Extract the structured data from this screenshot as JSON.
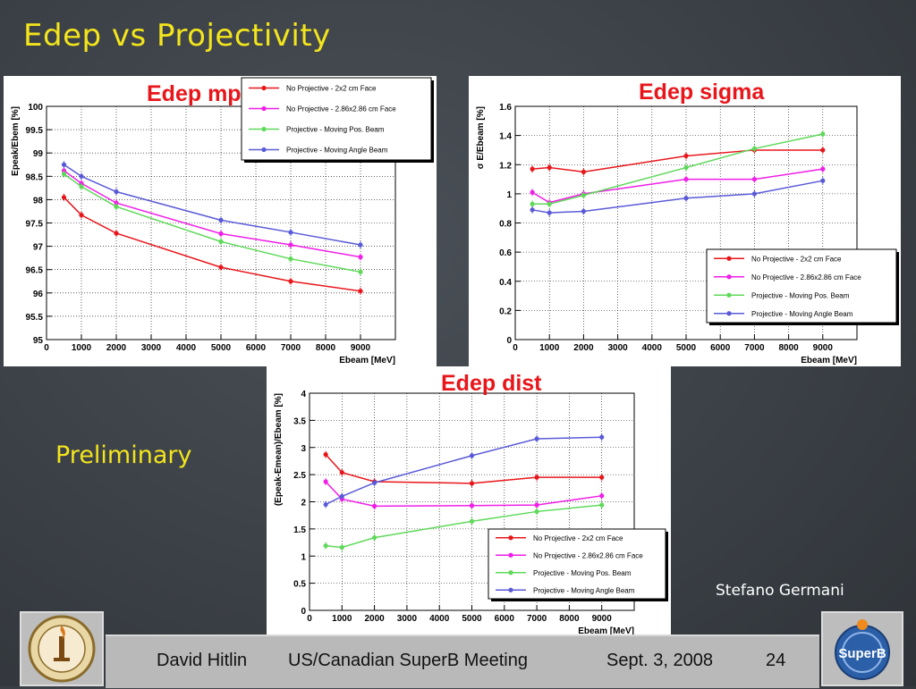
{
  "slide": {
    "title": "Edep vs Projectivity",
    "preliminary": "Preliminary",
    "author": "Stefano Germani"
  },
  "footer": {
    "presenter": "David Hitlin",
    "meeting": "US/Canadian SuperB Meeting",
    "date": "Sept. 3, 2008",
    "page": "24",
    "left_logo": "caltech-seal",
    "right_logo": "superb-logo",
    "right_logo_text": "SuperB"
  },
  "colors": {
    "title_yellow": "#f3e51c",
    "red": "#e8161b",
    "magenta": "#f01ee6",
    "green": "#5fd95a",
    "blue": "#5a5ad8"
  },
  "chart_data": [
    {
      "id": "mpv",
      "type": "line",
      "title": "Edep mpv",
      "xlabel": "Ebeam [MeV]",
      "ylabel": "Epeak/Ebem [%]",
      "xlim": [
        0,
        10000
      ],
      "ylim": [
        95,
        100
      ],
      "xticks": [
        0,
        1000,
        2000,
        3000,
        4000,
        5000,
        6000,
        7000,
        8000,
        9000
      ],
      "yticks": [
        95,
        95.5,
        96,
        96.5,
        97,
        97.5,
        98,
        98.5,
        99,
        99.5,
        100
      ],
      "grid": true,
      "legend_position": "top-right",
      "x": [
        500,
        1000,
        2000,
        5000,
        7000,
        9000
      ],
      "series": [
        {
          "name": "No Projective - 2x2 cm Face",
          "color": "#e8161b",
          "values": [
            98.05,
            97.67,
            97.28,
            96.55,
            96.25,
            96.04
          ]
        },
        {
          "name": "No Projective - 2.86x2.86 cm Face",
          "color": "#f01ee6",
          "values": [
            98.62,
            98.35,
            97.93,
            97.27,
            97.03,
            96.77
          ]
        },
        {
          "name": "Projective - Moving Pos. Beam",
          "color": "#5fd95a",
          "values": [
            98.55,
            98.28,
            97.85,
            97.1,
            96.73,
            96.45
          ]
        },
        {
          "name": "Projective - Moving Angle Beam",
          "color": "#5a5ad8",
          "values": [
            98.75,
            98.5,
            98.17,
            97.56,
            97.3,
            97.03
          ]
        }
      ]
    },
    {
      "id": "sigma",
      "type": "line",
      "title": "Edep sigma",
      "xlabel": "Ebeam [MeV]",
      "ylabel": "σ E/Ebeam [%]",
      "xlim": [
        0,
        10000
      ],
      "ylim": [
        0,
        1.6
      ],
      "xticks": [
        0,
        1000,
        2000,
        3000,
        4000,
        5000,
        6000,
        7000,
        8000,
        9000
      ],
      "yticks": [
        0,
        0.2,
        0.4,
        0.6,
        0.8,
        1,
        1.2,
        1.4,
        1.6
      ],
      "grid": true,
      "legend_position": "bottom-right",
      "x": [
        500,
        1000,
        2000,
        5000,
        7000,
        9000
      ],
      "series": [
        {
          "name": "No Projective - 2x2 cm Face",
          "color": "#e8161b",
          "values": [
            1.17,
            1.18,
            1.15,
            1.26,
            1.3,
            1.3
          ]
        },
        {
          "name": "No Projective - 2.86x2.86 cm Face",
          "color": "#f01ee6",
          "values": [
            1.01,
            0.94,
            1.0,
            1.1,
            1.1,
            1.17
          ]
        },
        {
          "name": "Projective - Moving Pos. Beam",
          "color": "#5fd95a",
          "values": [
            0.93,
            0.93,
            0.99,
            1.18,
            1.31,
            1.41
          ]
        },
        {
          "name": "Projective - Moving Angle Beam",
          "color": "#5a5ad8",
          "values": [
            0.89,
            0.87,
            0.88,
            0.97,
            1.0,
            1.09
          ]
        }
      ]
    },
    {
      "id": "dist",
      "type": "line",
      "title": "Edep dist",
      "xlabel": "Ebeam [MeV]",
      "ylabel": "(Epeak-Emean)/Ebeam [%]",
      "xlim": [
        0,
        10000
      ],
      "ylim": [
        0,
        4
      ],
      "xticks": [
        0,
        1000,
        2000,
        3000,
        4000,
        5000,
        6000,
        7000,
        8000,
        9000
      ],
      "yticks": [
        0,
        0.5,
        1,
        1.5,
        2,
        2.5,
        3,
        3.5,
        4
      ],
      "grid": true,
      "legend_position": "bottom-right",
      "x": [
        500,
        1000,
        2000,
        5000,
        7000,
        9000
      ],
      "series": [
        {
          "name": "No Projective - 2x2 cm Face",
          "color": "#e8161b",
          "values": [
            2.87,
            2.54,
            2.37,
            2.34,
            2.45,
            2.45
          ]
        },
        {
          "name": "No Projective - 2.86x2.86 cm Face",
          "color": "#f01ee6",
          "values": [
            2.37,
            2.05,
            1.92,
            1.93,
            1.94,
            2.11
          ]
        },
        {
          "name": "Projective - Moving Pos. Beam",
          "color": "#5fd95a",
          "values": [
            1.19,
            1.16,
            1.34,
            1.64,
            1.82,
            1.94
          ]
        },
        {
          "name": "Projective - Moving Angle Beam",
          "color": "#5a5ad8",
          "values": [
            1.95,
            2.1,
            2.35,
            2.85,
            3.16,
            3.19
          ]
        }
      ]
    }
  ]
}
